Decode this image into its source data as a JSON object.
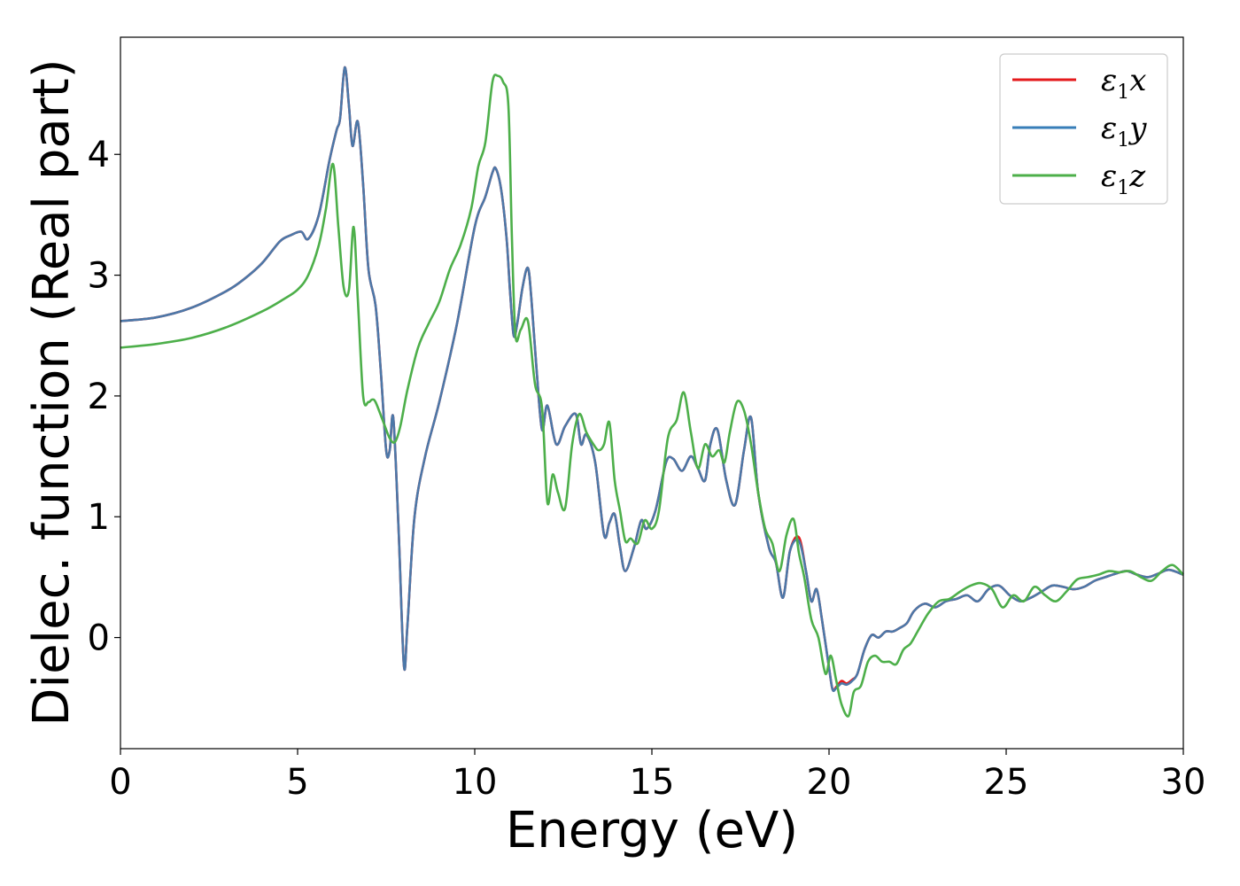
{
  "chart_data": {
    "type": "line",
    "xlabel": "Energy (eV)",
    "ylabel": "Dielec. function (Real part)",
    "xlim": [
      0,
      30
    ],
    "ylim": [
      -0.92,
      4.97
    ],
    "xticks": [
      0,
      5,
      10,
      15,
      20,
      25,
      30
    ],
    "xtick_labels": [
      "0",
      "5",
      "10",
      "15",
      "20",
      "25",
      "30"
    ],
    "yticks": [
      0,
      1,
      2,
      3,
      4
    ],
    "ytick_labels": [
      "0",
      "1",
      "2",
      "3",
      "4"
    ],
    "grid": false,
    "legend_position": "top-right",
    "legend": [
      {
        "base": "ε",
        "sub": "1",
        "var": "x",
        "color": "#e41a1c"
      },
      {
        "base": "ε",
        "sub": "1",
        "var": "y",
        "color": "#377eb8"
      },
      {
        "base": "ε",
        "sub": "1",
        "var": "z",
        "color": "#4daf4a"
      }
    ],
    "series": [
      {
        "name": "ε1x",
        "color": "#e41a1c",
        "x": [
          0,
          1,
          2,
          3,
          3.5,
          4,
          4.5,
          4.8,
          5.1,
          5.3,
          5.6,
          5.9,
          6.1,
          6.2,
          6.33,
          6.45,
          6.55,
          6.7,
          6.85,
          7.0,
          7.2,
          7.35,
          7.5,
          7.6,
          7.7,
          7.85,
          8.0,
          8.1,
          8.3,
          8.6,
          9.0,
          9.5,
          10.0,
          10.3,
          10.5,
          10.6,
          10.75,
          10.9,
          11.0,
          11.1,
          11.2,
          11.35,
          11.5,
          11.6,
          11.75,
          11.9,
          12.05,
          12.3,
          12.55,
          12.85,
          13.0,
          13.15,
          13.4,
          13.65,
          13.8,
          13.95,
          14.1,
          14.25,
          14.5,
          14.7,
          14.85,
          15.1,
          15.4,
          15.6,
          15.85,
          16.1,
          16.3,
          16.5,
          16.65,
          16.85,
          17.1,
          17.35,
          17.6,
          17.8,
          18.0,
          18.3,
          18.5,
          18.7,
          18.9,
          19.15,
          19.35,
          19.5,
          19.65,
          19.8,
          20.0,
          20.1,
          20.2,
          20.35,
          20.5,
          20.65,
          20.8,
          21.0,
          21.2,
          21.4,
          21.6,
          21.8,
          22.0,
          22.2,
          22.4,
          22.7,
          23.0,
          23.3,
          23.6,
          23.9,
          24.2,
          24.5,
          24.8,
          25.1,
          25.4,
          25.7,
          26.0,
          26.3,
          26.6,
          26.9,
          27.2,
          27.5,
          27.8,
          28.1,
          28.4,
          28.7,
          29.0,
          29.3,
          29.6,
          30.0
        ],
        "y": [
          2.62,
          2.65,
          2.73,
          2.87,
          2.97,
          3.1,
          3.28,
          3.33,
          3.36,
          3.3,
          3.5,
          3.95,
          4.2,
          4.3,
          4.72,
          4.4,
          4.07,
          4.27,
          3.75,
          3.05,
          2.75,
          2.2,
          1.55,
          1.55,
          1.82,
          0.9,
          -0.23,
          0.1,
          1.0,
          1.5,
          1.95,
          2.6,
          3.4,
          3.65,
          3.85,
          3.88,
          3.7,
          3.3,
          2.85,
          2.5,
          2.6,
          2.9,
          3.06,
          2.8,
          2.2,
          1.72,
          1.92,
          1.6,
          1.75,
          1.85,
          1.6,
          1.68,
          1.45,
          0.85,
          0.95,
          1.02,
          0.75,
          0.55,
          0.75,
          0.97,
          0.9,
          1.05,
          1.45,
          1.48,
          1.38,
          1.5,
          1.4,
          1.3,
          1.6,
          1.72,
          1.3,
          1.1,
          1.55,
          1.82,
          1.2,
          0.75,
          0.62,
          0.33,
          0.72,
          0.83,
          0.55,
          0.3,
          0.4,
          0.15,
          -0.25,
          -0.43,
          -0.41,
          -0.36,
          -0.38,
          -0.35,
          -0.3,
          -0.1,
          0.02,
          0.0,
          0.05,
          0.05,
          0.08,
          0.12,
          0.22,
          0.28,
          0.25,
          0.3,
          0.32,
          0.35,
          0.3,
          0.4,
          0.43,
          0.35,
          0.3,
          0.33,
          0.38,
          0.43,
          0.42,
          0.4,
          0.42,
          0.47,
          0.5,
          0.53,
          0.55,
          0.52,
          0.5,
          0.53,
          0.56,
          0.52
        ]
      },
      {
        "name": "ε1y",
        "color": "#4c78a8",
        "x": [
          0,
          1,
          2,
          3,
          3.5,
          4,
          4.5,
          4.8,
          5.1,
          5.3,
          5.6,
          5.9,
          6.1,
          6.2,
          6.33,
          6.45,
          6.55,
          6.7,
          6.85,
          7.0,
          7.2,
          7.35,
          7.5,
          7.6,
          7.7,
          7.85,
          8.0,
          8.1,
          8.3,
          8.6,
          9.0,
          9.5,
          10.0,
          10.3,
          10.5,
          10.6,
          10.75,
          10.9,
          11.0,
          11.1,
          11.2,
          11.35,
          11.5,
          11.6,
          11.75,
          11.9,
          12.05,
          12.3,
          12.55,
          12.85,
          13.0,
          13.15,
          13.4,
          13.65,
          13.8,
          13.95,
          14.1,
          14.25,
          14.5,
          14.7,
          14.85,
          15.1,
          15.4,
          15.6,
          15.85,
          16.1,
          16.3,
          16.5,
          16.65,
          16.85,
          17.1,
          17.35,
          17.6,
          17.8,
          18.0,
          18.3,
          18.5,
          18.7,
          18.9,
          19.15,
          19.35,
          19.5,
          19.65,
          19.8,
          20.0,
          20.1,
          20.2,
          20.35,
          20.5,
          20.65,
          20.8,
          21.0,
          21.2,
          21.4,
          21.6,
          21.8,
          22.0,
          22.2,
          22.4,
          22.7,
          23.0,
          23.3,
          23.6,
          23.9,
          24.2,
          24.5,
          24.8,
          25.1,
          25.4,
          25.7,
          26.0,
          26.3,
          26.6,
          26.9,
          27.2,
          27.5,
          27.8,
          28.1,
          28.4,
          28.7,
          29.0,
          29.3,
          29.6,
          30.0
        ],
        "y": [
          2.62,
          2.65,
          2.73,
          2.87,
          2.97,
          3.1,
          3.28,
          3.33,
          3.36,
          3.3,
          3.5,
          3.95,
          4.2,
          4.3,
          4.72,
          4.4,
          4.07,
          4.27,
          3.75,
          3.05,
          2.75,
          2.2,
          1.55,
          1.55,
          1.82,
          0.9,
          -0.23,
          0.1,
          1.0,
          1.5,
          1.95,
          2.6,
          3.4,
          3.65,
          3.85,
          3.88,
          3.7,
          3.3,
          2.85,
          2.5,
          2.6,
          2.9,
          3.06,
          2.8,
          2.2,
          1.72,
          1.92,
          1.6,
          1.75,
          1.85,
          1.6,
          1.68,
          1.45,
          0.85,
          0.95,
          1.02,
          0.75,
          0.55,
          0.75,
          0.97,
          0.9,
          1.05,
          1.45,
          1.48,
          1.38,
          1.5,
          1.4,
          1.3,
          1.6,
          1.72,
          1.3,
          1.1,
          1.55,
          1.82,
          1.2,
          0.75,
          0.62,
          0.33,
          0.72,
          0.8,
          0.55,
          0.3,
          0.4,
          0.15,
          -0.25,
          -0.43,
          -0.42,
          -0.38,
          -0.39,
          -0.36,
          -0.3,
          -0.1,
          0.02,
          0.0,
          0.05,
          0.05,
          0.08,
          0.12,
          0.22,
          0.28,
          0.25,
          0.3,
          0.32,
          0.35,
          0.3,
          0.4,
          0.43,
          0.35,
          0.3,
          0.33,
          0.38,
          0.43,
          0.42,
          0.4,
          0.42,
          0.47,
          0.5,
          0.53,
          0.55,
          0.52,
          0.5,
          0.53,
          0.56,
          0.52
        ]
      },
      {
        "name": "ε1z",
        "color": "#4daf4a",
        "x": [
          0,
          1,
          2,
          3,
          4,
          4.6,
          5.0,
          5.3,
          5.6,
          5.8,
          6.0,
          6.15,
          6.3,
          6.45,
          6.58,
          6.7,
          6.85,
          7.0,
          7.1,
          7.2,
          7.4,
          7.6,
          7.75,
          7.9,
          8.1,
          8.4,
          8.7,
          9.0,
          9.3,
          9.6,
          9.9,
          10.1,
          10.3,
          10.5,
          10.65,
          10.8,
          10.95,
          11.05,
          11.15,
          11.3,
          11.5,
          11.7,
          11.9,
          12.05,
          12.2,
          12.35,
          12.55,
          12.75,
          12.95,
          13.15,
          13.35,
          13.5,
          13.65,
          13.8,
          13.95,
          14.1,
          14.25,
          14.4,
          14.6,
          14.8,
          15.0,
          15.2,
          15.45,
          15.7,
          15.9,
          16.1,
          16.3,
          16.5,
          16.7,
          16.9,
          17.05,
          17.2,
          17.4,
          17.6,
          17.8,
          18.0,
          18.2,
          18.4,
          18.6,
          18.8,
          19.0,
          19.15,
          19.3,
          19.5,
          19.7,
          19.9,
          20.05,
          20.2,
          20.35,
          20.55,
          20.7,
          20.9,
          21.1,
          21.3,
          21.5,
          21.7,
          21.9,
          22.1,
          22.3,
          22.5,
          22.8,
          23.1,
          23.4,
          23.7,
          24.0,
          24.3,
          24.6,
          24.9,
          25.2,
          25.5,
          25.8,
          26.1,
          26.4,
          26.7,
          27.0,
          27.3,
          27.6,
          27.9,
          28.2,
          28.5,
          28.8,
          29.1,
          29.4,
          29.7,
          30.0
        ],
        "y": [
          2.4,
          2.43,
          2.48,
          2.57,
          2.7,
          2.8,
          2.88,
          3.0,
          3.25,
          3.55,
          3.92,
          3.4,
          2.9,
          2.88,
          3.4,
          2.8,
          2.0,
          1.95,
          1.97,
          1.95,
          1.8,
          1.65,
          1.62,
          1.75,
          2.05,
          2.4,
          2.6,
          2.78,
          3.05,
          3.25,
          3.55,
          3.9,
          4.1,
          4.6,
          4.65,
          4.6,
          4.4,
          3.3,
          2.5,
          2.55,
          2.62,
          2.1,
          1.9,
          1.12,
          1.35,
          1.2,
          1.07,
          1.6,
          1.85,
          1.7,
          1.6,
          1.55,
          1.6,
          1.78,
          1.3,
          1.05,
          0.8,
          0.82,
          0.78,
          0.97,
          0.9,
          1.05,
          1.65,
          1.8,
          2.03,
          1.7,
          1.4,
          1.6,
          1.5,
          1.55,
          1.45,
          1.7,
          1.95,
          1.88,
          1.6,
          1.2,
          0.9,
          0.78,
          0.55,
          0.85,
          0.98,
          0.7,
          0.5,
          0.15,
          0.0,
          -0.3,
          -0.15,
          -0.35,
          -0.55,
          -0.65,
          -0.45,
          -0.4,
          -0.2,
          -0.15,
          -0.2,
          -0.2,
          -0.22,
          -0.1,
          -0.05,
          0.05,
          0.2,
          0.3,
          0.32,
          0.38,
          0.43,
          0.45,
          0.4,
          0.25,
          0.35,
          0.3,
          0.42,
          0.35,
          0.3,
          0.38,
          0.48,
          0.5,
          0.52,
          0.55,
          0.54,
          0.55,
          0.5,
          0.47,
          0.55,
          0.6,
          0.52
        ]
      }
    ]
  }
}
